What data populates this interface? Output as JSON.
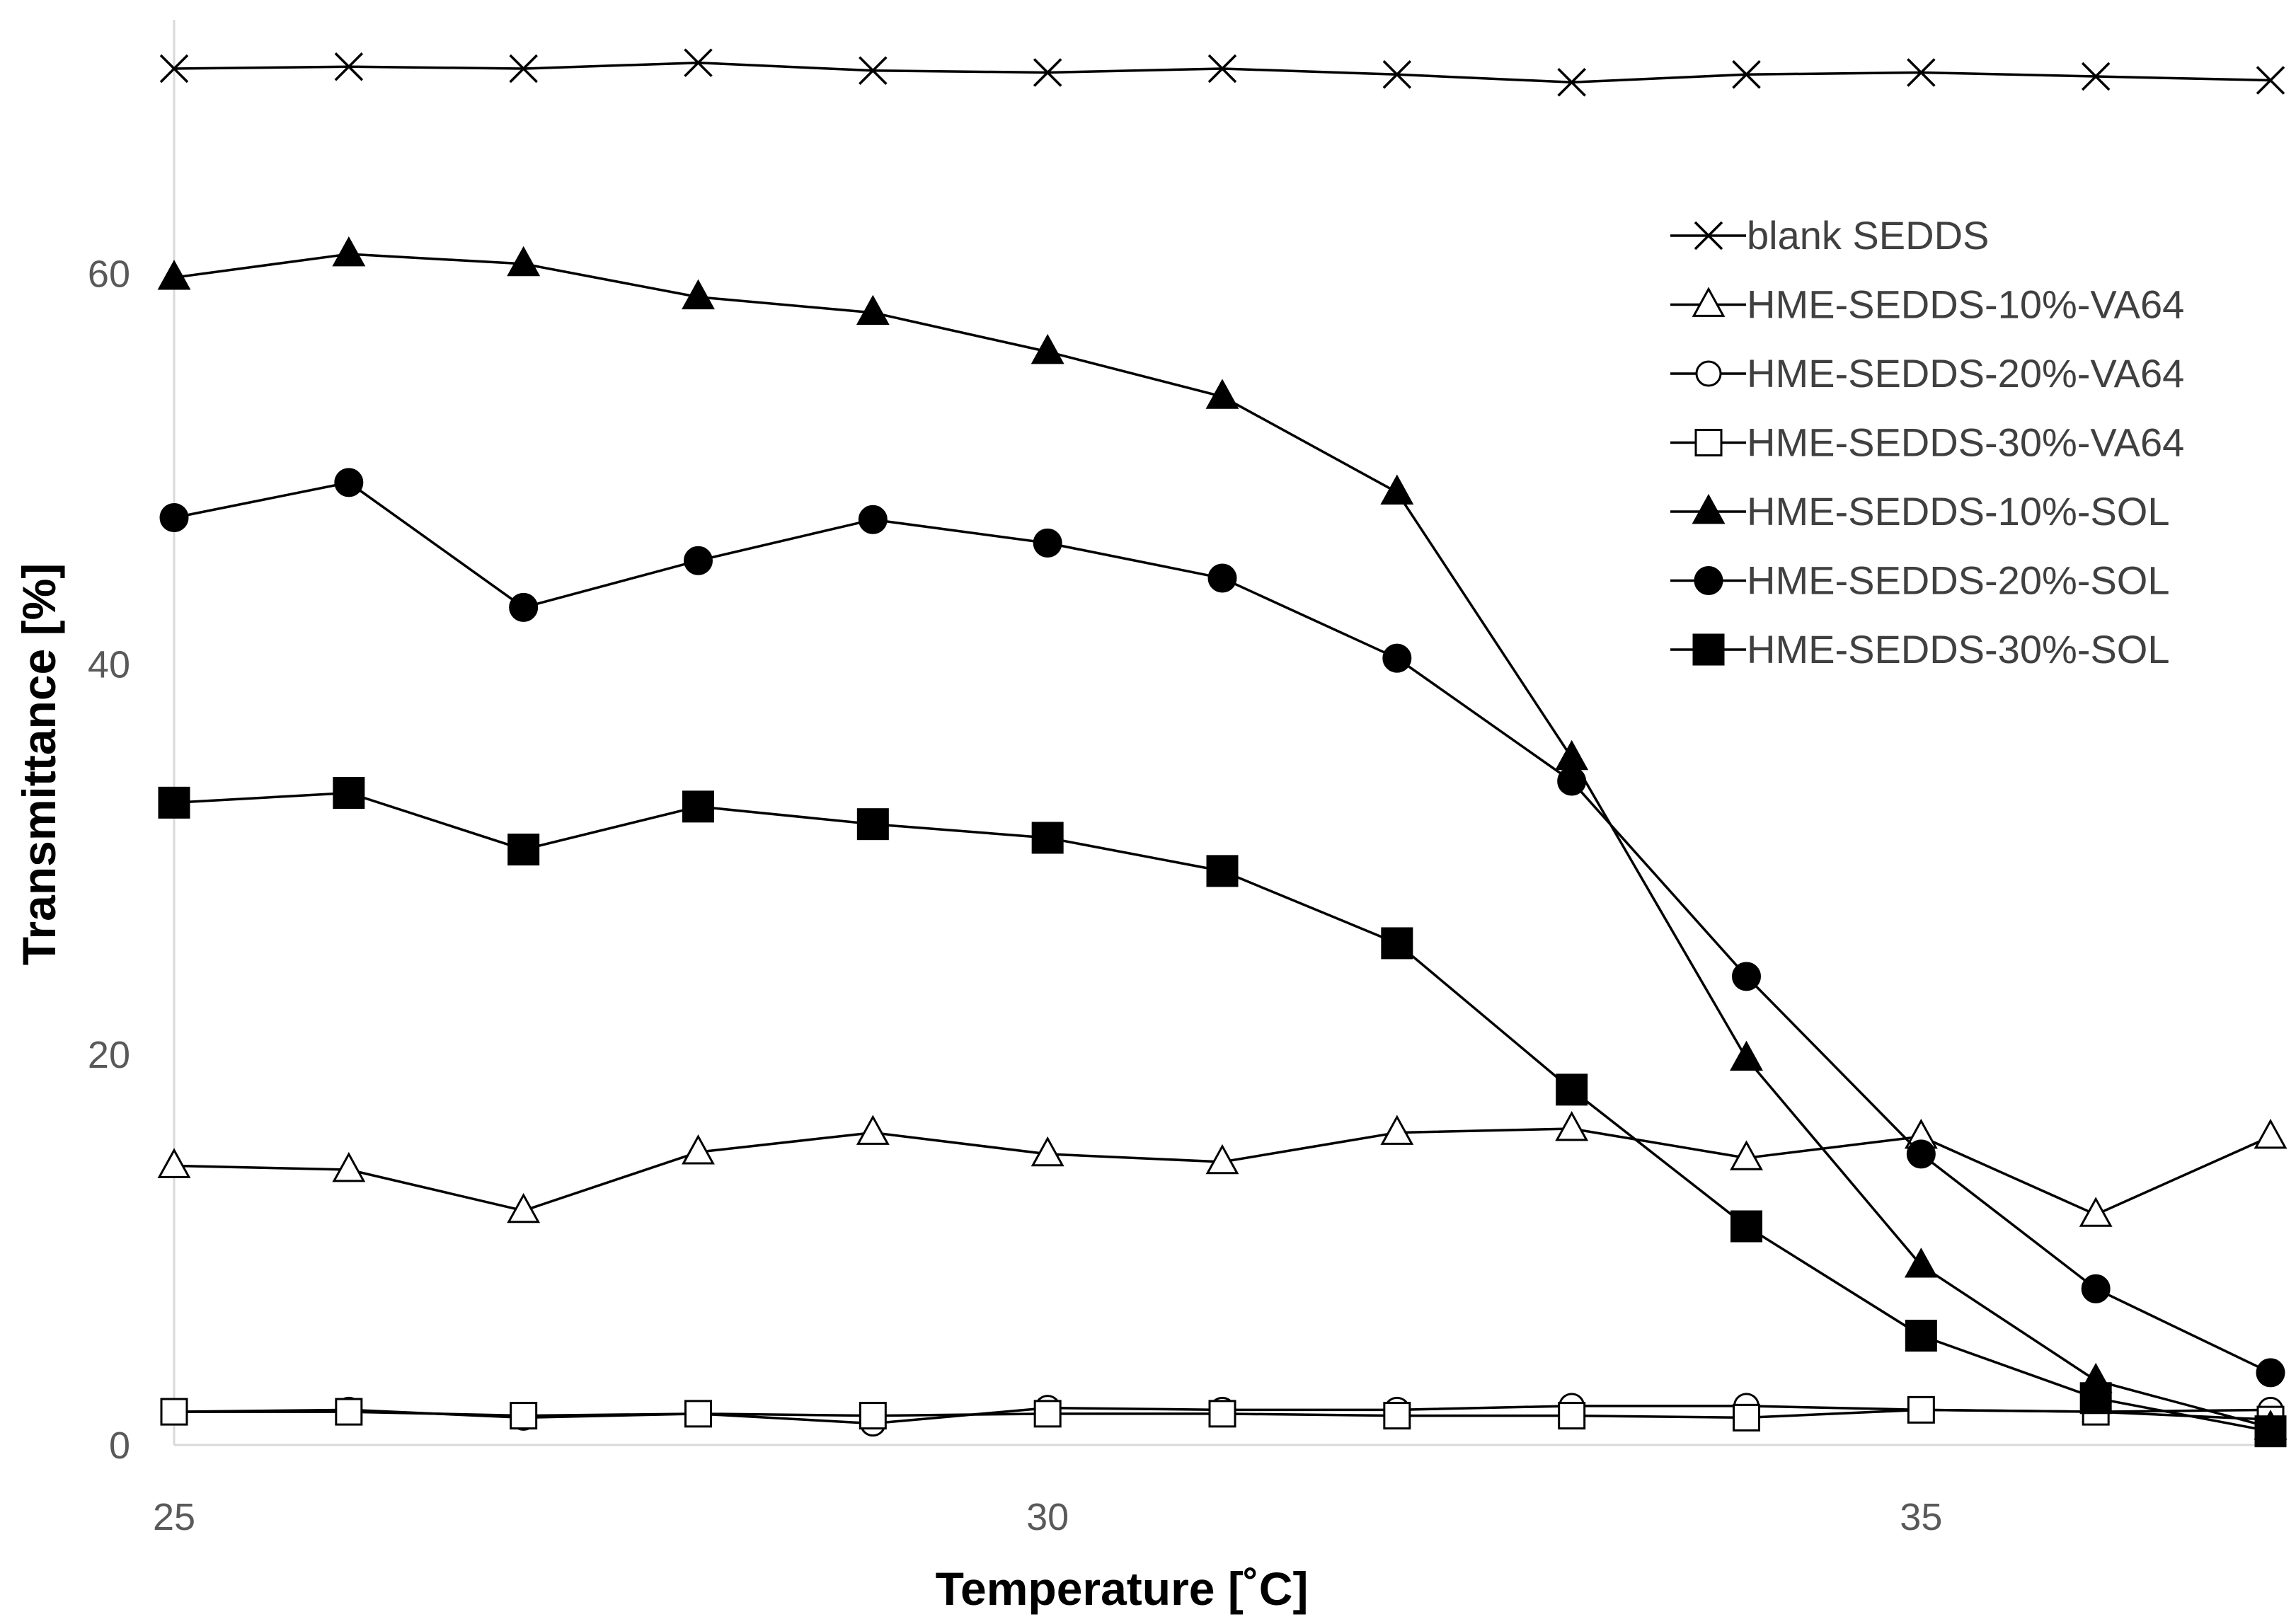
{
  "chart_data": {
    "type": "line",
    "title": "",
    "xlabel": "Temperature [˚C]",
    "ylabel": "Transmittance [%]",
    "xlim": [
      25,
      37
    ],
    "ylim": [
      0,
      73
    ],
    "xticks": [
      25,
      30,
      35
    ],
    "yticks": [
      0,
      20,
      40,
      60
    ],
    "x": [
      25,
      26,
      27,
      28,
      29,
      30,
      31,
      32,
      33,
      34,
      35,
      36,
      37
    ],
    "grid": false,
    "legend_position": "top-right",
    "line_color": "#000000",
    "series": [
      {
        "name": "blank SEDDS",
        "marker": "x",
        "values": [
          70.5,
          70.6,
          70.5,
          70.8,
          70.4,
          70.3,
          70.5,
          70.2,
          69.8,
          70.2,
          70.3,
          70.1,
          69.9
        ]
      },
      {
        "name": "HME-SEDDS-10%-VA64",
        "marker": "triangle-open",
        "values": [
          14.3,
          14.1,
          12.0,
          15.0,
          16.0,
          14.9,
          14.5,
          16.0,
          16.2,
          14.7,
          15.8,
          11.8,
          15.8
        ]
      },
      {
        "name": "HME-SEDDS-20%-VA64",
        "marker": "circle-open",
        "values": [
          1.7,
          1.8,
          1.4,
          1.6,
          1.1,
          1.9,
          1.8,
          1.8,
          2.0,
          2.0,
          1.8,
          1.7,
          1.8
        ]
      },
      {
        "name": "HME-SEDDS-30%-VA64",
        "marker": "square-open",
        "values": [
          1.7,
          1.7,
          1.5,
          1.6,
          1.5,
          1.6,
          1.6,
          1.5,
          1.5,
          1.4,
          1.8,
          1.7,
          1.3
        ]
      },
      {
        "name": "HME-SEDDS-10%-SOL",
        "marker": "triangle-filled",
        "values": [
          59.8,
          61.0,
          60.5,
          58.8,
          58.0,
          56.0,
          53.7,
          48.8,
          35.2,
          19.8,
          9.2,
          3.3,
          0.9
        ]
      },
      {
        "name": "HME-SEDDS-20%-SOL",
        "marker": "circle-filled",
        "values": [
          47.5,
          49.3,
          42.9,
          45.3,
          47.4,
          46.2,
          44.4,
          40.3,
          34.0,
          24.0,
          14.9,
          8.0,
          3.7
        ]
      },
      {
        "name": "HME-SEDDS-30%-SOL",
        "marker": "square-filled",
        "values": [
          32.9,
          33.4,
          30.5,
          32.7,
          31.8,
          31.1,
          29.4,
          25.7,
          18.2,
          11.2,
          5.6,
          2.4,
          0.7
        ]
      }
    ]
  }
}
